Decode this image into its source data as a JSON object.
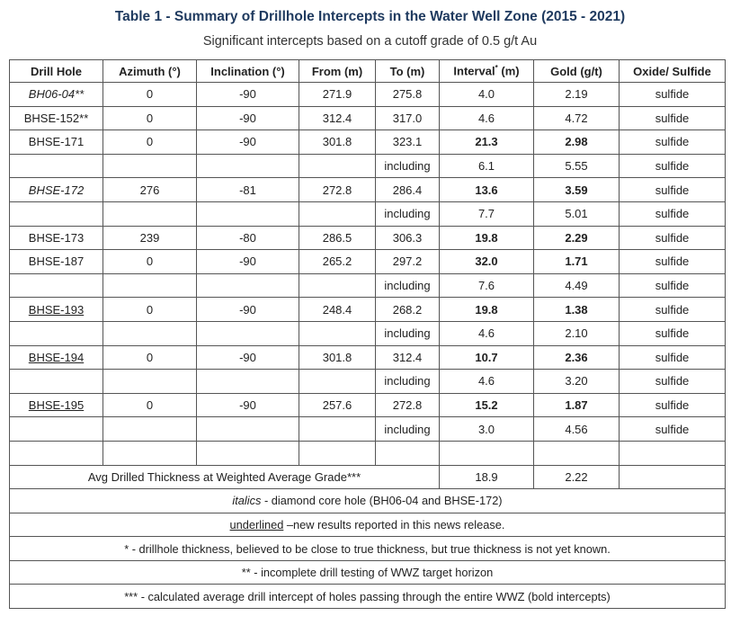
{
  "title": "Table 1 - Summary of Drillhole Intercepts in the Water Well Zone (2015 - 2021)",
  "subtitle": "Significant intercepts based on a cutoff grade of 0.5 g/t Au",
  "headers": {
    "hole": "Drill Hole",
    "azimuth": "Azimuth (°)",
    "inclination": "Inclination (°)",
    "from": "From (m)",
    "to": "To (m)",
    "interval": "Interval",
    "interval_mark": "*",
    "interval_unit": " (m)",
    "gold": "Gold (g/t)",
    "oxide": "Oxide/ Sulfide"
  },
  "rows": [
    {
      "hole": "BH06-04**",
      "azimuth": "0",
      "inclination": "-90",
      "from": "271.9",
      "to": "275.8",
      "interval": "4.0",
      "gold": "2.19",
      "type": "sulfide"
    },
    {
      "hole": "BHSE-152**",
      "azimuth": "0",
      "inclination": "-90",
      "from": "312.4",
      "to": "317.0",
      "interval": "4.6",
      "gold": "4.72",
      "type": "sulfide"
    },
    {
      "hole": "BHSE-171",
      "azimuth": "0",
      "inclination": "-90",
      "from": "301.8",
      "to": "323.1",
      "interval": "21.3",
      "gold": "2.98",
      "type": "sulfide"
    },
    {
      "hole": "",
      "azimuth": "",
      "inclination": "",
      "from": "",
      "to": "including",
      "interval": "6.1",
      "gold": "5.55",
      "type": "sulfide"
    },
    {
      "hole": "BHSE-172",
      "azimuth": "276",
      "inclination": "-81",
      "from": "272.8",
      "to": "286.4",
      "interval": "13.6",
      "gold": "3.59",
      "type": "sulfide"
    },
    {
      "hole": "",
      "azimuth": "",
      "inclination": "",
      "from": "",
      "to": "including",
      "interval": "7.7",
      "gold": "5.01",
      "type": "sulfide"
    },
    {
      "hole": "BHSE-173",
      "azimuth": "239",
      "inclination": "-80",
      "from": "286.5",
      "to": "306.3",
      "interval": "19.8",
      "gold": "2.29",
      "type": "sulfide"
    },
    {
      "hole": "BHSE-187",
      "azimuth": "0",
      "inclination": "-90",
      "from": "265.2",
      "to": "297.2",
      "interval": "32.0",
      "gold": "1.71",
      "type": "sulfide"
    },
    {
      "hole": "",
      "azimuth": "",
      "inclination": "",
      "from": "",
      "to": "including",
      "interval": "7.6",
      "gold": "4.49",
      "type": "sulfide"
    },
    {
      "hole": "BHSE-193",
      "azimuth": "0",
      "inclination": "-90",
      "from": "248.4",
      "to": "268.2",
      "interval": "19.8",
      "gold": "1.38",
      "type": "sulfide"
    },
    {
      "hole": "",
      "azimuth": "",
      "inclination": "",
      "from": "",
      "to": "including",
      "interval": "4.6",
      "gold": "2.10",
      "type": "sulfide"
    },
    {
      "hole": "BHSE-194",
      "azimuth": "0",
      "inclination": "-90",
      "from": "301.8",
      "to": "312.4",
      "interval": "10.7",
      "gold": "2.36",
      "type": "sulfide"
    },
    {
      "hole": "",
      "azimuth": "",
      "inclination": "",
      "from": "",
      "to": "including",
      "interval": "4.6",
      "gold": "3.20",
      "type": "sulfide"
    },
    {
      "hole": "BHSE-195",
      "azimuth": "0",
      "inclination": "-90",
      "from": "257.6",
      "to": "272.8",
      "interval": "15.2",
      "gold": "1.87",
      "type": "sulfide"
    },
    {
      "hole": "",
      "azimuth": "",
      "inclination": "",
      "from": "",
      "to": "including",
      "interval": "3.0",
      "gold": "4.56",
      "type": "sulfide"
    },
    {
      "hole": "",
      "azimuth": "",
      "inclination": "",
      "from": "",
      "to": "",
      "interval": "",
      "gold": "",
      "type": ""
    }
  ],
  "avg": {
    "label": "Avg Drilled Thickness at Weighted Average Grade***",
    "interval": "18.9",
    "gold": "2.22"
  },
  "footnotes": {
    "italics_word": "italics",
    "italics_text": " - diamond core hole (BH06-04 and BHSE-172)",
    "underlined_word": "underlined",
    "underlined_text": " –new results reported in this news release.",
    "note1": "* - drillhole thickness, believed to be close to true thickness, but true thickness is not yet known.",
    "note2": "** - incomplete drill testing of WWZ target horizon",
    "note3": "*** - calculated average drill intercept of holes passing through the entire WWZ (bold intercepts)"
  }
}
